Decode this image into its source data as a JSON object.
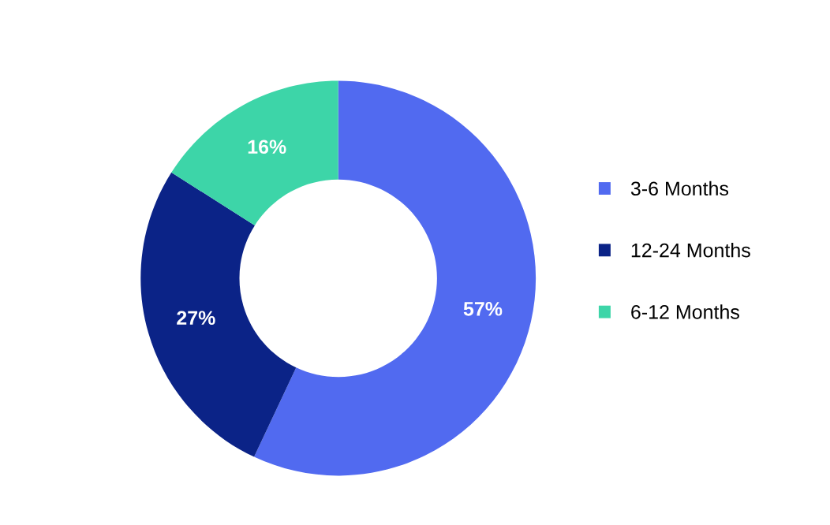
{
  "chart_data": {
    "type": "donut",
    "categories": [
      "3-6 Months",
      "12-24 Months",
      "6-12 Months"
    ],
    "values": [
      57,
      27,
      16
    ],
    "colors": [
      "#516af0",
      "#0b2387",
      "#3dd5a8"
    ],
    "value_labels": [
      "57%",
      "27%",
      "16%"
    ],
    "legend": "right"
  }
}
